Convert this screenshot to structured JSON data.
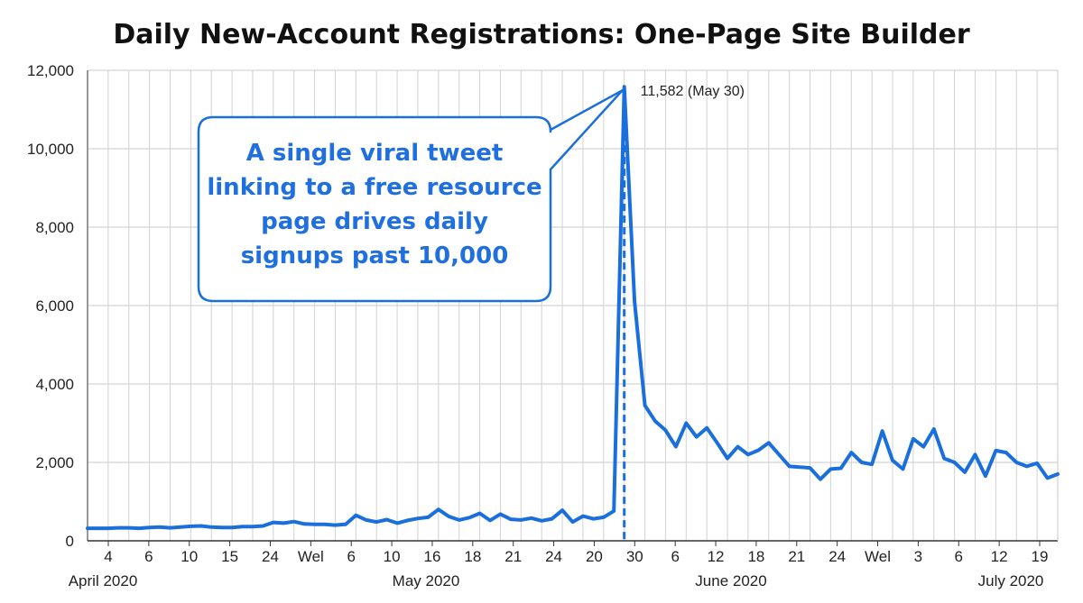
{
  "chart_data": {
    "type": "line",
    "title": "Daily New-Account Registrations: One-Page Site Builder",
    "xlabel": "",
    "ylabel": "",
    "ylim": [
      0,
      12000
    ],
    "y_ticks": [
      0,
      2000,
      4000,
      6000,
      8000,
      10000,
      12000
    ],
    "y_tick_labels": [
      "0",
      "2,000",
      "4,000",
      "6,000",
      "8,000",
      "10,000",
      "12,000"
    ],
    "x_tick_labels": [
      "4",
      "6",
      "10",
      "15",
      "24",
      "Wel",
      "6",
      "10",
      "16",
      "18",
      "21",
      "24",
      "20",
      "30",
      "6",
      "12",
      "18",
      "21",
      "24",
      "Wel",
      "3",
      "6",
      "12",
      "19"
    ],
    "month_labels": [
      "April 2020",
      "May 2020",
      "June 2020",
      "July 2020"
    ],
    "grid": true,
    "line_color": "#1a6fdc",
    "peak": {
      "value": 11582,
      "label": "11,582 (May 30)"
    },
    "annotation": "A single viral tweet linking to a free resource page drives daily signups past 10,000",
    "series": [
      {
        "values": [
          320,
          320,
          320,
          330,
          330,
          320,
          340,
          350,
          330,
          350,
          370,
          380,
          350,
          340,
          340,
          360,
          360,
          380,
          470,
          450,
          490,
          430,
          420,
          420,
          400,
          420,
          650,
          530,
          480,
          540,
          450,
          520,
          570,
          600,
          800,
          620,
          530,
          590,
          700,
          520,
          680,
          550,
          530,
          580,
          510,
          560,
          780,
          480,
          630,
          560,
          600,
          760,
          11582,
          6100,
          3450,
          3050,
          2820,
          2400,
          3000,
          2650,
          2880,
          2500,
          2100,
          2400,
          2200,
          2310,
          2500,
          2200,
          1900,
          1880,
          1860,
          1570,
          1830,
          1850,
          2250,
          2000,
          1950,
          2800,
          2050,
          1830,
          2600,
          2400,
          2850,
          2100,
          2000,
          1750,
          2200,
          1650,
          2300,
          2250,
          2000,
          1900,
          1980,
          1600,
          1700
        ]
      }
    ]
  }
}
